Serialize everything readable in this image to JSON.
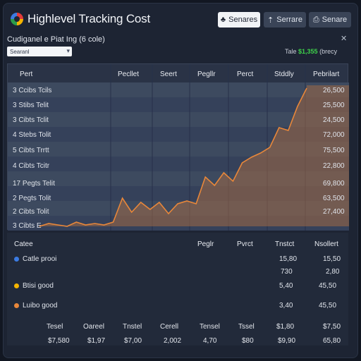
{
  "app": {
    "title": "Highlevel Tracking Cost"
  },
  "toolbar": {
    "btn1": "Senares",
    "btn2": "Serrare",
    "btn3": "Senare"
  },
  "panel": {
    "subtitle": "Cudiganel e Piat Ing (6 cole)",
    "select_value": "Searanl",
    "total_label": "Tale",
    "total_value": "$1,355",
    "total_suffix": "(brecy"
  },
  "table_header": [
    "Pert",
    "Pecllet",
    "Seert",
    "Pegllr",
    "Perct",
    "Stddly",
    "Pebrilart"
  ],
  "rows": [
    {
      "label": "3 Ccibs Tcils",
      "value": "26,500"
    },
    {
      "label": "3 Stibs Telit",
      "value": "25,500"
    },
    {
      "label": "3 Cibts Tclit",
      "value": "24,500"
    },
    {
      "label": "4 Stebs Tolit",
      "value": "72,000"
    },
    {
      "label": "5 Cibts Trrtt",
      "value": "75,500"
    },
    {
      "label": "4 Cibts Tcitr",
      "value": "22,800"
    },
    {
      "label": "17 Pegts Telit",
      "value": "69,800"
    },
    {
      "label": "2 Pegts Tolit",
      "value": "63,500"
    },
    {
      "label": "2 Cibts Tolit",
      "value": "27,400"
    },
    {
      "label": "3 Cibts E",
      "value": ""
    }
  ],
  "chart_data": {
    "type": "area",
    "x": [
      1,
      2,
      3,
      4,
      5,
      6,
      7,
      8,
      9,
      10,
      11,
      12,
      13,
      14,
      15,
      16,
      17,
      18,
      19,
      20,
      21,
      22,
      23,
      24,
      25,
      26,
      27,
      28,
      29,
      30
    ],
    "values": [
      0,
      2,
      1,
      0,
      3,
      1,
      2,
      1,
      3,
      20,
      10,
      17,
      12,
      17,
      9,
      16,
      18,
      16,
      35,
      29,
      38,
      32,
      45,
      49,
      52,
      56,
      70,
      68,
      85,
      98
    ],
    "ylim": [
      0,
      100
    ],
    "grid": true,
    "colors": {
      "line": "#e8873a",
      "fill": "#a06a45"
    }
  },
  "summary": {
    "header": {
      "label": "Catee",
      "c1": "Peglr",
      "c2": "Pvrct",
      "c3": "Tnstct",
      "c4": "Nsollert"
    },
    "items": [
      {
        "label": "Catle prooi",
        "v1": "15,80",
        "v1b": "730",
        "v2": "15,50",
        "v2b": "2,80"
      },
      {
        "label": "Btisi good",
        "v1": "5,40",
        "v2": "45,50"
      },
      {
        "label": "Luibo good",
        "v1": "3,40",
        "v2": "45,50"
      }
    ],
    "foot_labels": [
      "Tesel",
      "Oareel",
      "Tnstel",
      "Cerell",
      "Tensel",
      "Tssel",
      "$1,80",
      "$7,50"
    ],
    "foot_values": [
      "$7,580",
      "$1,97",
      "$7,00",
      "2,002",
      "4,70",
      "$80",
      "$9,90",
      "65,80"
    ]
  }
}
